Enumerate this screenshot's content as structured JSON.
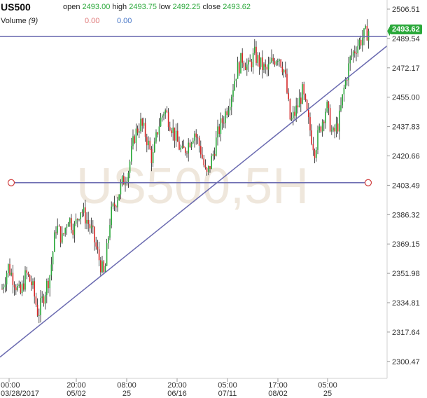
{
  "header": {
    "symbol": "US500",
    "open_label": "open",
    "open_value": "2493.00",
    "high_label": "high",
    "high_value": "2493.75",
    "low_label": "low",
    "low_value": "2492.25",
    "close_label": "close",
    "close_value": "2493.62",
    "volume_label": "Volume",
    "volume_period": "(9)",
    "volume_value_1": "0.00",
    "volume_value_2": "0.00"
  },
  "watermark": "US500,5H",
  "current_price_tag": "2493.62",
  "colors": {
    "up": "#2aa83a",
    "down": "#d62828",
    "trendline": "#6a6ab0",
    "marker": "#d04040",
    "axis_text": "#333333",
    "watermark": "#efe7dc"
  },
  "chart_data": {
    "type": "candlestick",
    "y_ticks": [
      "2506.51",
      "2489.54",
      "2472.17",
      "2455.00",
      "2437.83",
      "2420.66",
      "2403.49",
      "2386.32",
      "2369.15",
      "2351.98",
      "2334.81",
      "2317.64",
      "2300.47"
    ],
    "x_ticks": [
      {
        "time": "00:00",
        "date": "03/28/2017"
      },
      {
        "time": "20:00",
        "date": "05/02"
      },
      {
        "time": "08:00",
        "date": "25"
      },
      {
        "time": "20:00",
        "date": "06/16"
      },
      {
        "time": "05:00",
        "date": "07/11"
      },
      {
        "time": "17:00",
        "date": "08/02"
      },
      {
        "time": "05:00",
        "date": "25"
      }
    ],
    "ylim": [
      2298,
      2510
    ],
    "price_path": [
      2343,
      2356,
      2348,
      2339,
      2352,
      2345,
      2328,
      2340,
      2352,
      2380,
      2372,
      2385,
      2378,
      2390,
      2384,
      2376,
      2362,
      2350,
      2385,
      2395,
      2405,
      2412,
      2432,
      2440,
      2432,
      2418,
      2438,
      2448,
      2440,
      2430,
      2422,
      2428,
      2435,
      2425,
      2408,
      2420,
      2435,
      2444,
      2455,
      2470,
      2478,
      2472,
      2480,
      2474,
      2470,
      2476,
      2480,
      2470,
      2440,
      2448,
      2458,
      2440,
      2424,
      2438,
      2450,
      2432,
      2440,
      2462,
      2478,
      2485,
      2490,
      2494
    ],
    "lines": [
      {
        "kind": "horizontal",
        "price": 2490.5
      },
      {
        "kind": "horizontal",
        "price": 2405.0
      },
      {
        "kind": "trend",
        "from": {
          "x_frac": 0.0,
          "price": 2303
        },
        "to": {
          "x_frac": 1.0,
          "price": 2485
        }
      }
    ],
    "last_price": 2493.62
  }
}
